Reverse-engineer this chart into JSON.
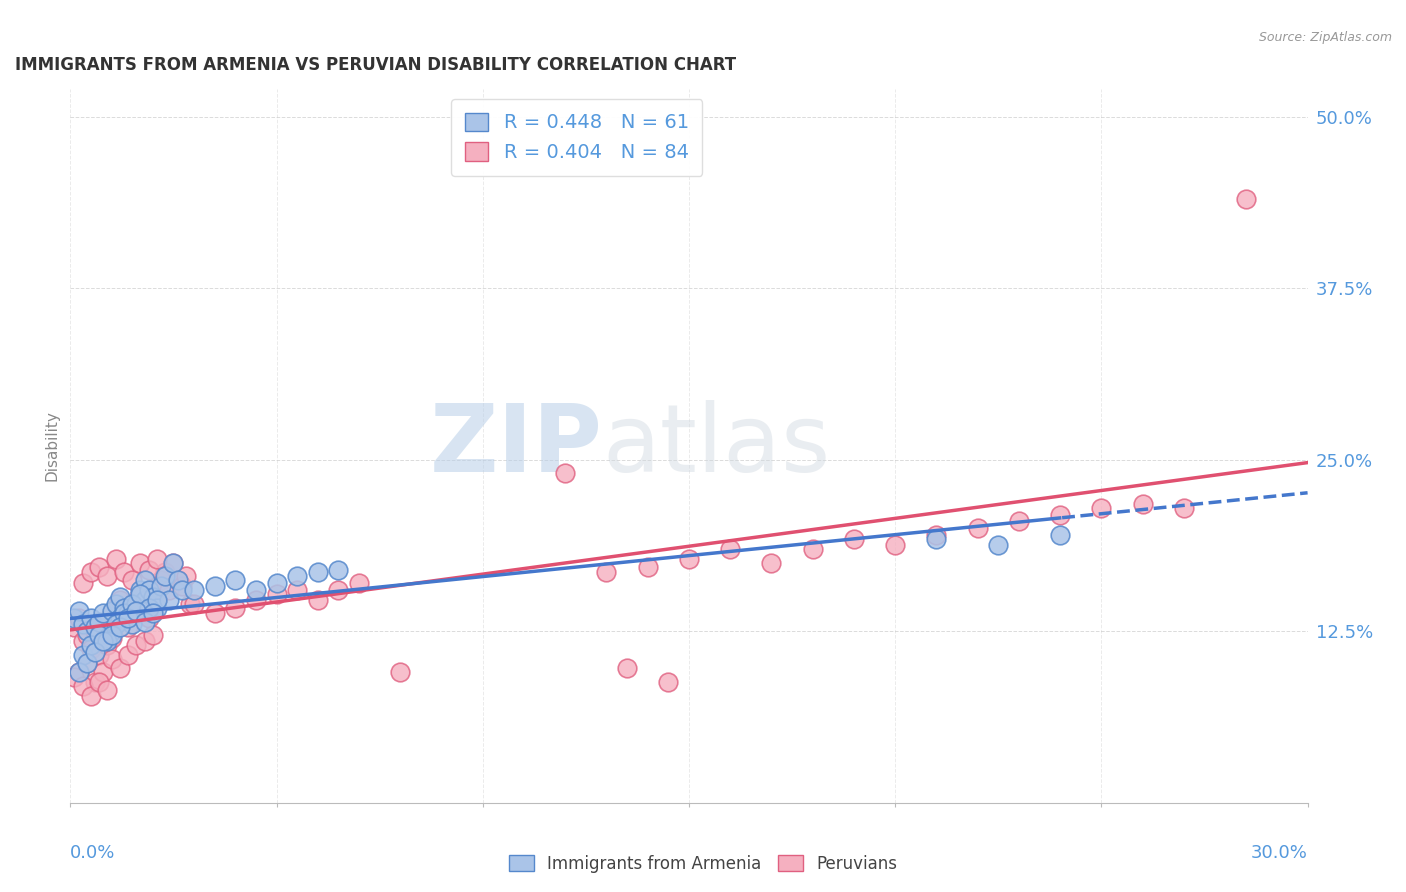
{
  "title": "IMMIGRANTS FROM ARMENIA VS PERUVIAN DISABILITY CORRELATION CHART",
  "source": "Source: ZipAtlas.com",
  "ylabel": "Disability",
  "xlim": [
    0.0,
    0.3
  ],
  "ylim": [
    0.0,
    0.52
  ],
  "yticks": [
    0.0,
    0.125,
    0.25,
    0.375,
    0.5
  ],
  "ytick_labels": [
    "",
    "12.5%",
    "25.0%",
    "37.5%",
    "50.0%"
  ],
  "legend_armenia_R": "0.448",
  "legend_armenia_N": "61",
  "legend_peruvian_R": "0.404",
  "legend_peruvian_N": "84",
  "watermark_zip": "ZIP",
  "watermark_atlas": "atlas",
  "color_armenia_fill": "#aac4e8",
  "color_armenia_edge": "#5588cc",
  "color_peruvian_fill": "#f5b0c0",
  "color_peruvian_edge": "#e06080",
  "color_armenia_line": "#4477cc",
  "color_peruvian_line": "#e05070",
  "color_text_blue": "#5599dd",
  "color_grid": "#cccccc",
  "armenia_x": [
    0.001,
    0.002,
    0.003,
    0.004,
    0.005,
    0.006,
    0.007,
    0.008,
    0.009,
    0.01,
    0.01,
    0.011,
    0.012,
    0.012,
    0.013,
    0.014,
    0.015,
    0.016,
    0.017,
    0.018,
    0.018,
    0.019,
    0.02,
    0.021,
    0.022,
    0.023,
    0.024,
    0.025,
    0.026,
    0.027,
    0.003,
    0.005,
    0.007,
    0.009,
    0.011,
    0.013,
    0.015,
    0.017,
    0.019,
    0.021,
    0.002,
    0.004,
    0.006,
    0.008,
    0.01,
    0.012,
    0.014,
    0.016,
    0.018,
    0.02,
    0.03,
    0.035,
    0.04,
    0.045,
    0.05,
    0.055,
    0.06,
    0.065,
    0.21,
    0.225,
    0.24
  ],
  "armenia_y": [
    0.135,
    0.14,
    0.13,
    0.125,
    0.135,
    0.128,
    0.132,
    0.138,
    0.12,
    0.125,
    0.14,
    0.145,
    0.15,
    0.135,
    0.142,
    0.138,
    0.13,
    0.145,
    0.155,
    0.148,
    0.162,
    0.155,
    0.15,
    0.142,
    0.158,
    0.165,
    0.148,
    0.175,
    0.162,
    0.155,
    0.108,
    0.115,
    0.122,
    0.118,
    0.13,
    0.138,
    0.145,
    0.152,
    0.142,
    0.148,
    0.095,
    0.102,
    0.11,
    0.118,
    0.122,
    0.128,
    0.135,
    0.14,
    0.132,
    0.138,
    0.155,
    0.158,
    0.162,
    0.155,
    0.16,
    0.165,
    0.168,
    0.17,
    0.192,
    0.188,
    0.195
  ],
  "peruvian_x": [
    0.001,
    0.002,
    0.003,
    0.004,
    0.005,
    0.006,
    0.007,
    0.008,
    0.009,
    0.01,
    0.01,
    0.011,
    0.012,
    0.013,
    0.014,
    0.015,
    0.016,
    0.017,
    0.018,
    0.019,
    0.02,
    0.021,
    0.022,
    0.023,
    0.024,
    0.025,
    0.026,
    0.027,
    0.028,
    0.029,
    0.002,
    0.004,
    0.006,
    0.008,
    0.01,
    0.012,
    0.014,
    0.016,
    0.018,
    0.02,
    0.003,
    0.005,
    0.007,
    0.009,
    0.011,
    0.013,
    0.015,
    0.017,
    0.019,
    0.021,
    0.001,
    0.003,
    0.005,
    0.007,
    0.009,
    0.03,
    0.035,
    0.04,
    0.045,
    0.05,
    0.055,
    0.06,
    0.065,
    0.07,
    0.08,
    0.13,
    0.14,
    0.15,
    0.16,
    0.17,
    0.18,
    0.19,
    0.2,
    0.21,
    0.22,
    0.23,
    0.24,
    0.25,
    0.26,
    0.27,
    0.12,
    0.135,
    0.145,
    0.285
  ],
  "peruvian_y": [
    0.128,
    0.135,
    0.118,
    0.122,
    0.112,
    0.125,
    0.108,
    0.13,
    0.115,
    0.12,
    0.138,
    0.142,
    0.148,
    0.135,
    0.128,
    0.145,
    0.138,
    0.152,
    0.142,
    0.135,
    0.155,
    0.148,
    0.162,
    0.168,
    0.155,
    0.175,
    0.162,
    0.158,
    0.165,
    0.145,
    0.095,
    0.102,
    0.088,
    0.095,
    0.105,
    0.098,
    0.108,
    0.115,
    0.118,
    0.122,
    0.16,
    0.168,
    0.172,
    0.165,
    0.178,
    0.168,
    0.162,
    0.175,
    0.17,
    0.178,
    0.092,
    0.085,
    0.078,
    0.088,
    0.082,
    0.145,
    0.138,
    0.142,
    0.148,
    0.152,
    0.155,
    0.148,
    0.155,
    0.16,
    0.095,
    0.168,
    0.172,
    0.178,
    0.185,
    0.175,
    0.185,
    0.192,
    0.188,
    0.195,
    0.2,
    0.205,
    0.21,
    0.215,
    0.218,
    0.215,
    0.24,
    0.098,
    0.088,
    0.44
  ]
}
